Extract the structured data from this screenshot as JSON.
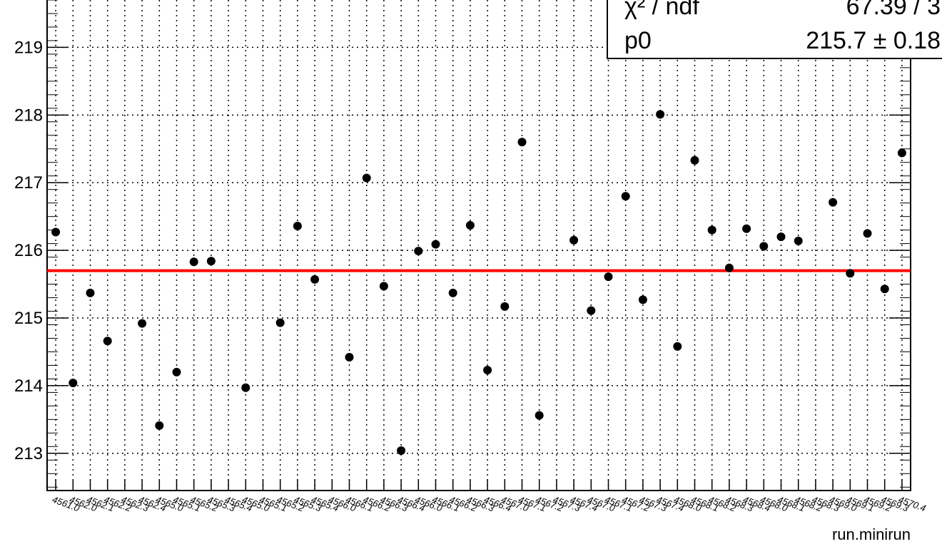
{
  "chart_data": {
    "type": "scatter",
    "xlabel": "run.minirun",
    "ylabel": "",
    "ylim": [
      212.45,
      219.7
    ],
    "yticks": [
      213,
      214,
      215,
      216,
      217,
      218,
      219
    ],
    "grid": true,
    "categories": [
      "4561.0",
      "4562.0",
      "4562.1",
      "4562.2",
      "4562.3",
      "4562.4",
      "4565.0",
      "4565.1",
      "4565.2",
      "4565.3",
      "4565.4",
      "4565.0",
      "4565.1",
      "4565.2",
      "4565.3",
      "4565.4",
      "4566.0",
      "4566.1",
      "4566.2",
      "4566.3",
      "4566.4",
      "4566.0",
      "4566.1",
      "4566.2",
      "4566.3",
      "4566.4",
      "4567.0",
      "4567.1",
      "4567.2",
      "4567.3",
      "4567.4",
      "4567.0",
      "4567.1",
      "4567.2",
      "4567.3",
      "4567.4",
      "4568.0",
      "4568.1",
      "4568.2",
      "4568.3",
      "4568.4",
      "4568.0",
      "4568.1",
      "4568.2",
      "4568.3",
      "4569.0",
      "4569.1",
      "4569.2",
      "4569.3",
      "4570.4"
    ],
    "values": [
      216.27,
      214.04,
      215.37,
      214.66,
      null,
      214.92,
      213.41,
      214.2,
      215.83,
      215.84,
      null,
      213.97,
      null,
      214.93,
      216.36,
      215.57,
      null,
      214.42,
      217.07,
      215.47,
      213.04,
      215.99,
      216.09,
      215.37,
      216.37,
      214.23,
      215.17,
      217.6,
      213.56,
      null,
      216.15,
      215.11,
      215.61,
      216.8,
      215.27,
      218.01,
      214.58,
      217.33,
      216.3,
      215.74,
      216.32,
      216.06,
      216.2,
      216.14,
      null,
      216.71,
      215.66,
      216.25,
      215.43,
      217.44
    ],
    "fit": {
      "name": "p0",
      "value": 215.7
    },
    "stats": {
      "row1_label": "χ² / ndf",
      "row1_value": "67.39 / 3",
      "row2_label": "p0",
      "row2_value": "215.7 ± 0.18"
    }
  },
  "colors": {
    "points": "#000000",
    "fit_line": "#ff0000",
    "grid": "#000000",
    "background": "#ffffff"
  }
}
